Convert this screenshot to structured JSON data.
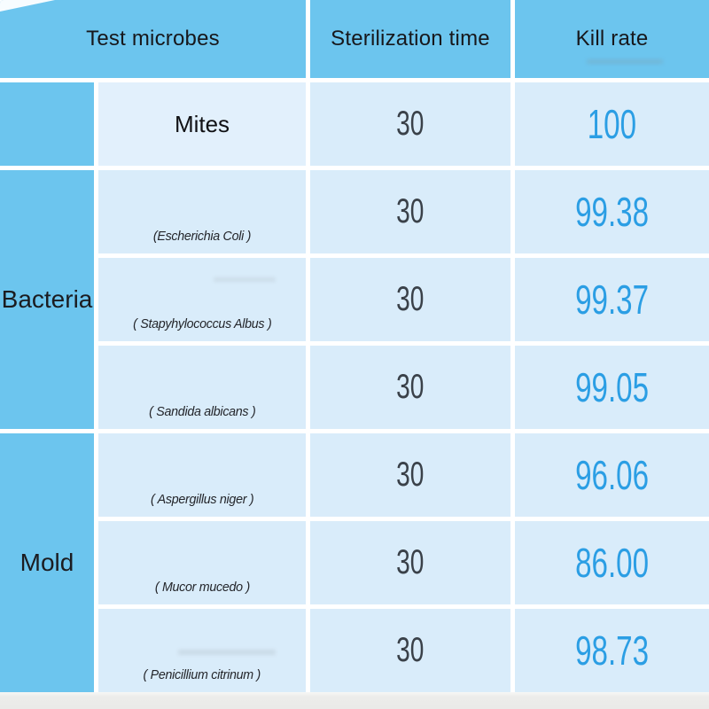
{
  "chart_data": {
    "type": "table",
    "columns": [
      "Test microbes",
      "Sterilization time",
      "Kill rate"
    ],
    "groups": [
      {
        "category": "",
        "rows": [
          {
            "microbe": "Mites",
            "sterilization_time": "30",
            "kill_rate": "100"
          }
        ]
      },
      {
        "category": "Bacteria",
        "rows": [
          {
            "microbe": "(Escherichia Coli )",
            "sterilization_time": "30",
            "kill_rate": "99.38"
          },
          {
            "microbe": "( Stapyhylococcus Albus )",
            "sterilization_time": "30",
            "kill_rate": "99.37"
          },
          {
            "microbe": "( Sandida albicans )",
            "sterilization_time": "30",
            "kill_rate": "99.05"
          }
        ]
      },
      {
        "category": "Mold",
        "rows": [
          {
            "microbe": "( Aspergillus niger )",
            "sterilization_time": "30",
            "kill_rate": "96.06"
          },
          {
            "microbe": "( Mucor mucedo )",
            "sterilization_time": "30",
            "kill_rate": "86.00"
          },
          {
            "microbe": "( Penicillium citrinum )",
            "sterilization_time": "30",
            "kill_rate": "98.73"
          }
        ]
      }
    ],
    "layout": {
      "grid": "on",
      "border_color": "#ffffff",
      "header_position": "top"
    },
    "colors": {
      "header_background": "#6cc5ee",
      "category_background": "#6cc5ee",
      "cell_background": "#d9ecfa",
      "kill_rate_text": "#2b9ee4",
      "time_text": "#3a4149",
      "header_text": "#17181c"
    }
  }
}
